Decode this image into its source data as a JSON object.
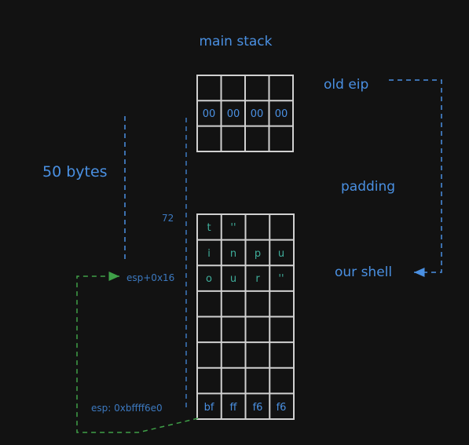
{
  "colors": {
    "background": "#121212",
    "grid": "#d0d0d0",
    "blue": "#4a90e2",
    "dim_blue": "#3c79c0",
    "green": "#3fa048",
    "teal": "#3fae9b"
  },
  "labels": {
    "main_stack": "main stack",
    "old_eip": "old eip",
    "padding": "padding",
    "our_shell": "our shell",
    "fifty_bytes": "50 bytes",
    "seventy_two": "72",
    "esp_offset": "esp+0x16",
    "esp_address": "esp: 0xbffff6e0"
  },
  "top_stack_rows": [
    [
      "",
      "",
      "",
      ""
    ],
    [
      "00",
      "00",
      "00",
      "00"
    ],
    [
      "",
      "",
      "",
      ""
    ]
  ],
  "bottom_stack_rows": [
    [
      "t",
      "''",
      "",
      ""
    ],
    [
      "i",
      "n",
      "p",
      "u"
    ],
    [
      "o",
      "u",
      "r",
      "''"
    ],
    [
      "",
      "",
      "",
      ""
    ],
    [
      "",
      "",
      "",
      ""
    ],
    [
      "",
      "",
      "",
      ""
    ],
    [
      "",
      "",
      "",
      ""
    ],
    [
      "bf",
      "ff",
      "f6",
      "f6"
    ]
  ]
}
